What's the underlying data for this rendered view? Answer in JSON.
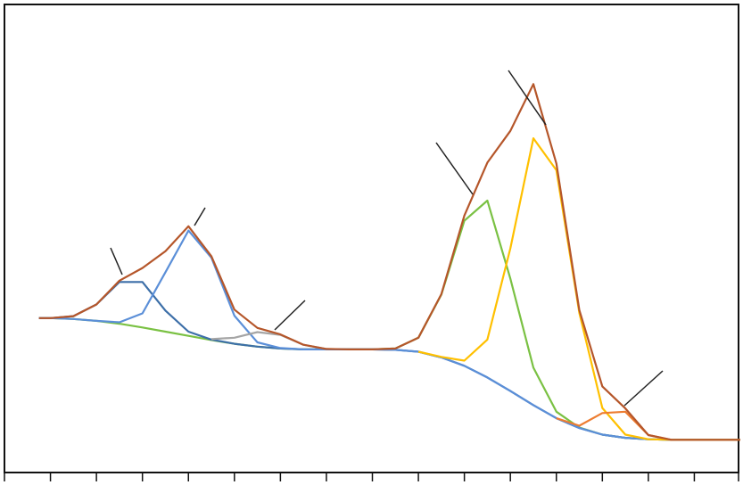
{
  "chart_data": {
    "type": "line",
    "x": [
      0.75,
      1,
      1.5,
      2,
      2.5,
      3,
      3.5,
      4,
      4.5,
      5,
      5.5,
      6,
      6.5,
      7,
      7.5,
      8,
      8.5,
      9,
      9.5,
      10,
      10.5,
      11,
      11.5,
      12,
      12.5,
      13,
      13.5,
      14,
      14.5,
      15,
      15.5,
      16
    ],
    "xlim": [
      0,
      16
    ],
    "xticks": [
      0,
      1,
      2,
      3,
      4,
      5,
      6,
      7,
      8,
      9,
      10,
      11,
      12,
      13,
      14,
      15,
      16
    ],
    "ylim": [
      0,
      100
    ],
    "series": [
      {
        "color": "#7ac143",
        "values": [
          33.0,
          33.0,
          32.8,
          32.4,
          31.8,
          31.0,
          30.1,
          29.2,
          28.3,
          27.5,
          26.9,
          26.5,
          26.3,
          26.3,
          26.3,
          26.3,
          26.5,
          28.8,
          38.0,
          53.8,
          58.1,
          41.4,
          22.4,
          13.0,
          9.6,
          8.1,
          7.4,
          7.1,
          7.0,
          7.0,
          7.0,
          7.0
        ]
      },
      {
        "color": "#3d6fa8",
        "values": [
          33.0,
          33.0,
          33.4,
          35.9,
          40.7,
          40.7,
          34.6,
          30.1,
          28.4,
          27.5,
          26.9,
          26.5,
          26.3,
          26.3,
          26.3,
          26.3,
          26.2,
          25.8,
          24.6,
          22.8,
          20.3,
          17.4,
          14.4,
          11.6,
          9.5,
          8.1,
          7.4,
          7.1,
          7.0,
          7.0,
          7.0,
          7.0
        ]
      },
      {
        "color": "#5b8fd8",
        "values": [
          33.0,
          33.0,
          32.8,
          32.4,
          32.1,
          34.0,
          42.8,
          51.7,
          45.9,
          33.5,
          27.8,
          26.6,
          26.3,
          26.3,
          26.3,
          26.3,
          26.2,
          25.8,
          24.6,
          22.8,
          20.3,
          17.4,
          14.4,
          11.6,
          9.5,
          8.1,
          7.4,
          7.1,
          7.0,
          7.0,
          7.0,
          7.0
        ]
      },
      {
        "color": "#a5a5a5",
        "values": [
          null,
          null,
          null,
          null,
          null,
          null,
          null,
          null,
          28.5,
          28.8,
          30.0,
          29.4,
          27.3,
          26.4,
          null,
          null,
          null,
          null,
          null,
          null,
          null,
          null,
          null,
          null,
          null,
          null,
          null,
          null,
          null,
          null,
          null,
          null
        ]
      },
      {
        "color": "#ffc000",
        "values": [
          null,
          null,
          null,
          null,
          null,
          null,
          null,
          null,
          null,
          null,
          null,
          null,
          null,
          null,
          null,
          null,
          null,
          25.8,
          24.7,
          23.9,
          28.4,
          47.9,
          71.4,
          64.6,
          34.1,
          13.8,
          8.1,
          7.1,
          7.0,
          7.0,
          7.0,
          7.0
        ]
      },
      {
        "color": "#ed7d31",
        "values": [
          null,
          null,
          null,
          null,
          null,
          null,
          null,
          null,
          null,
          null,
          null,
          null,
          null,
          null,
          null,
          null,
          null,
          null,
          null,
          null,
          null,
          null,
          null,
          11.6,
          10.0,
          12.7,
          13.0,
          8.0,
          7.0,
          null,
          null,
          null
        ]
      },
      {
        "color": "#b5562a",
        "values": [
          33.0,
          33.0,
          33.4,
          35.9,
          41.0,
          43.7,
          47.3,
          52.6,
          46.2,
          34.8,
          30.9,
          29.5,
          27.3,
          26.4,
          26.3,
          26.3,
          26.5,
          28.8,
          38.1,
          54.9,
          66.2,
          73.0,
          83.0,
          66.0,
          34.7,
          18.4,
          13.7,
          8.0,
          7.0,
          7.0,
          7.0,
          7.0
        ]
      }
    ]
  }
}
